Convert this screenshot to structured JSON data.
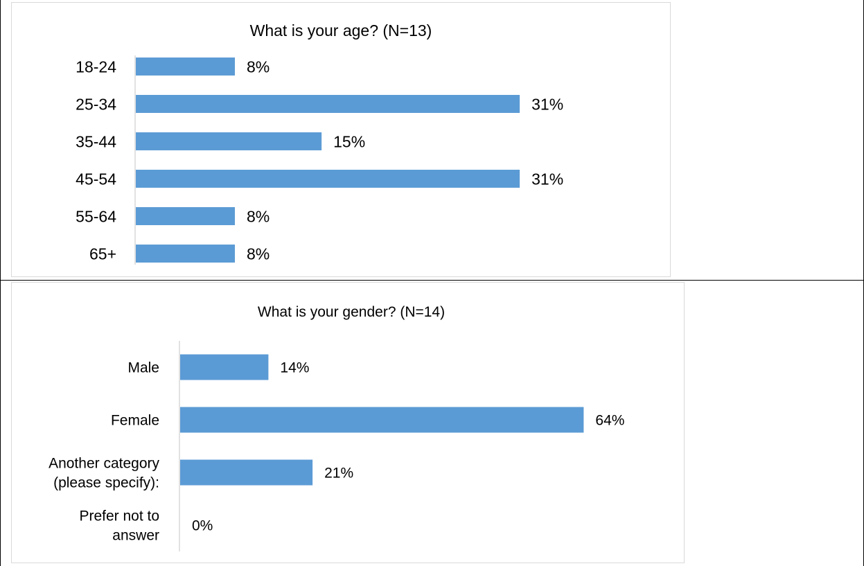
{
  "colors": {
    "bar": "#5b9bd5",
    "axis": "#d9d9d9",
    "frame": "#d9d9d9",
    "text": "#000000"
  },
  "chart_data": [
    {
      "type": "bar",
      "orientation": "horizontal",
      "title": "What is your age? (N=13)",
      "categories": [
        "18-24",
        "25-34",
        "35-44",
        "45-54",
        "55-64",
        "65+"
      ],
      "values": [
        8,
        31,
        15,
        31,
        8,
        8
      ],
      "data_labels": [
        "8%",
        "31%",
        "15%",
        "31%",
        "8%",
        "8%"
      ],
      "unit": "%",
      "xlim": [
        0,
        40
      ],
      "grid": false,
      "legend": "none"
    },
    {
      "type": "bar",
      "orientation": "horizontal",
      "title": "What is your gender? (N=14)",
      "categories": [
        [
          "Male"
        ],
        [
          "Female"
        ],
        [
          "Another category",
          "(please specify):"
        ],
        [
          "Prefer not to",
          "answer"
        ]
      ],
      "values": [
        14,
        64,
        21,
        0
      ],
      "data_labels": [
        "14%",
        "64%",
        "21%",
        "0%"
      ],
      "unit": "%",
      "xlim": [
        0,
        80
      ],
      "grid": false,
      "legend": "none"
    }
  ]
}
